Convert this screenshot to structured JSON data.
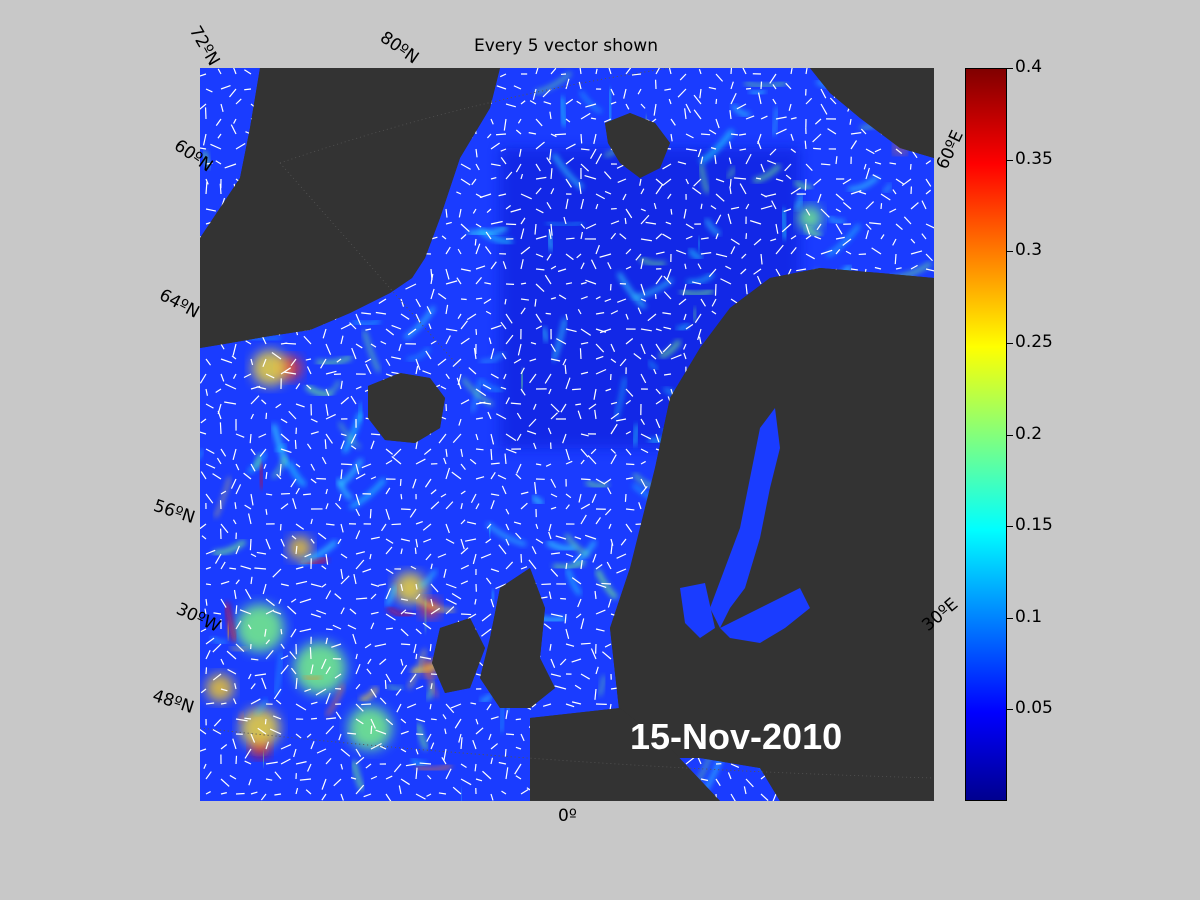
{
  "title": "Every 5 vector shown",
  "date": "15-Nov-2010",
  "graticule_labels": {
    "lat_72": "72ºN",
    "lat_80": "80ºN",
    "lat_60_left": "60ºN",
    "lat_64": "64ºN",
    "lat_56": "56ºN",
    "lat_48": "48ºN",
    "lon_30w": "30ºW",
    "lon_0": "0º",
    "lon_30e": "30ºE",
    "lon_60e": "60ºE"
  },
  "colorbar": {
    "colormap": "jet",
    "range": [
      0,
      0.4
    ],
    "ticks": [
      "0.4",
      "0.35",
      "0.3",
      "0.25",
      "0.2",
      "0.15",
      "0.1",
      "0.05"
    ],
    "tick_values": [
      0.4,
      0.35,
      0.3,
      0.25,
      0.2,
      0.15,
      0.1,
      0.05
    ]
  },
  "colors": {
    "background": "#c8c8c8",
    "ocean_base": "#1a3cff",
    "land": "#333333",
    "vectors": "#ffffff"
  }
}
